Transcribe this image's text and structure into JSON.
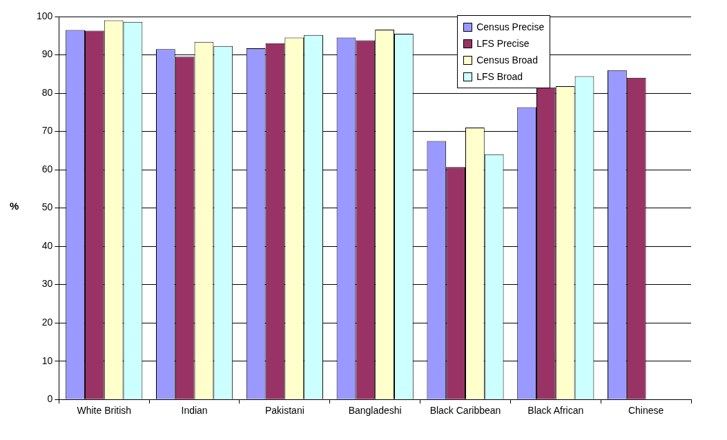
{
  "chart_data": {
    "type": "bar",
    "ylabel": "%",
    "categories": [
      "White British",
      "Indian",
      "Pakistani",
      "Bangladeshi",
      "Black Caribbean",
      "Black African",
      "Chinese"
    ],
    "series": [
      {
        "name": "Census Precise",
        "color": "#9999ff",
        "values": [
          96.5,
          91.5,
          91.7,
          94.5,
          67.5,
          76.3,
          86
        ]
      },
      {
        "name": "LFS Precise",
        "color": "#993366",
        "values": [
          96.3,
          89.5,
          93,
          93.8,
          60.7,
          81.5,
          84
        ]
      },
      {
        "name": "Census Broad",
        "color": "#ffffcc",
        "values": [
          99,
          93.4,
          94.5,
          96.6,
          71,
          81.8,
          null
        ]
      },
      {
        "name": "LFS Broad",
        "color": "#ccffff",
        "values": [
          98.6,
          92.3,
          95.2,
          95.5,
          64,
          84.4,
          null
        ]
      }
    ],
    "ylim": [
      0,
      100
    ],
    "yticks": [
      0,
      10,
      20,
      30,
      40,
      50,
      60,
      70,
      80,
      90,
      100
    ],
    "grid": "y",
    "legend": "top right"
  }
}
